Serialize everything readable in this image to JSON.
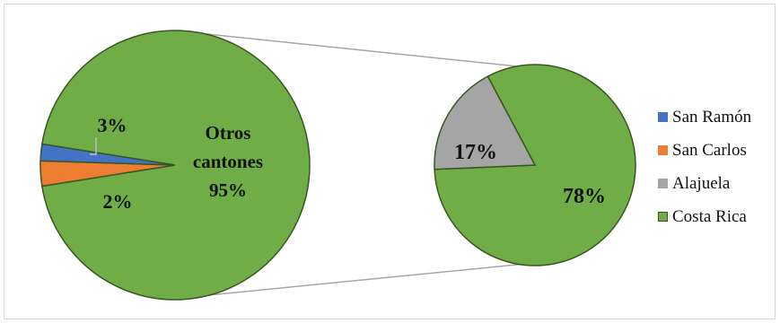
{
  "chart_data": {
    "type": "bar-of-pie",
    "main_pie": {
      "slices": [
        {
          "name": "San Ramón",
          "label": "2%",
          "value": 2,
          "color": "#4472c4"
        },
        {
          "name": "San Carlos",
          "label": "3%",
          "value": 3,
          "color": "#ed7d31"
        },
        {
          "name": "Otros cantones",
          "label": "95%",
          "value": 95,
          "color": "#70ad47"
        }
      ]
    },
    "secondary_pie": {
      "slices": [
        {
          "name": "Alajuela",
          "label": "17%",
          "value": 17,
          "color": "#a5a5a5"
        },
        {
          "name": "Costa Rica",
          "label": "78%",
          "value": 78,
          "color": "#70ad47"
        }
      ]
    },
    "labels": {
      "otros_line1": "Otros",
      "otros_line2": "cantones",
      "otros_pct": "95%",
      "san_carlos_pct": "3%",
      "san_ramon_pct": "2%",
      "alajuela_pct": "17%",
      "costa_rica_pct": "78%"
    },
    "legend": [
      {
        "label": "San Ramón",
        "color": "#4472c4"
      },
      {
        "label": "San Carlos",
        "color": "#ed7d31"
      },
      {
        "label": "Alajuela",
        "color": "#a5a5a5"
      },
      {
        "label": "Costa Rica",
        "color": "#70ad47"
      }
    ],
    "legend_position": "right"
  }
}
